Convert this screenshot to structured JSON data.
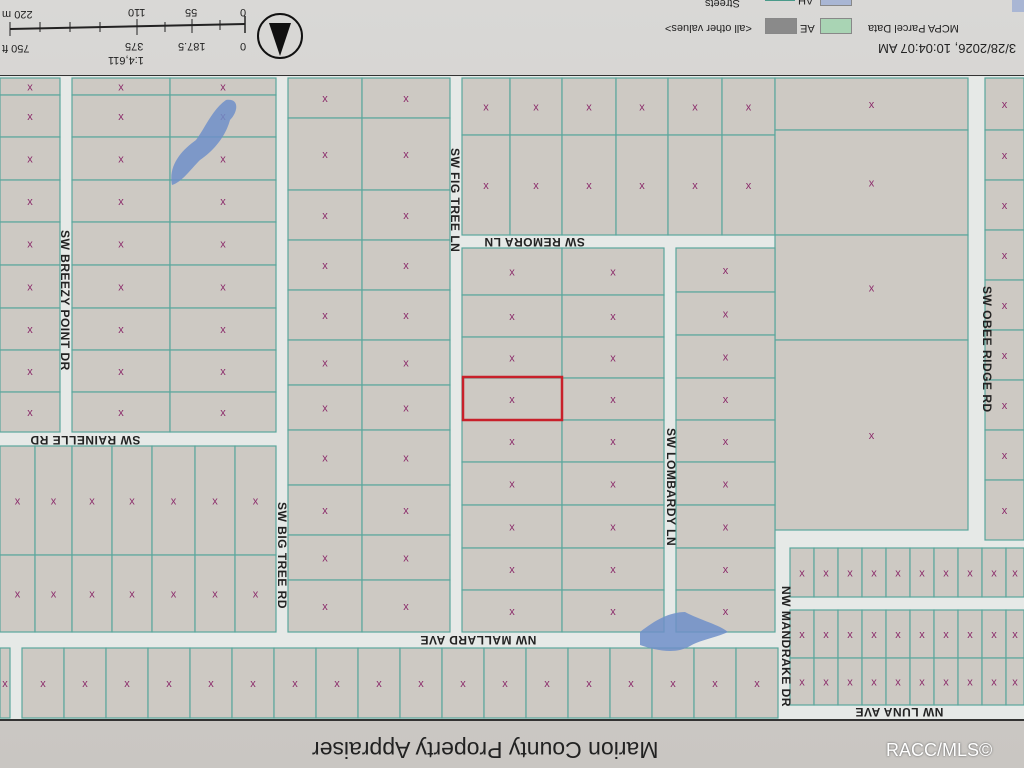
{
  "header": {
    "timestamp": "3/28/2026, 10:04:07 AM",
    "scale_ratio": "1:4,611",
    "scale_m": [
      "0",
      "55",
      "110",
      "220 m"
    ],
    "scale_ft": [
      "0",
      "187.5",
      "375",
      "750 ft"
    ],
    "north_arrow": "north-arrow-icon",
    "legend": {
      "title": "MCPA Parcel Data",
      "items": [
        {
          "label": "AE",
          "color": "#a9d4b4"
        },
        {
          "label": "<all other values>",
          "color": "#8a8a8a"
        },
        {
          "label": "AH",
          "color": "#a9b6d4"
        },
        {
          "label": "Streets",
          "color": "#4a9a8a"
        }
      ]
    }
  },
  "map": {
    "parcel_fill": "#cdc9c3",
    "parcel_line": "#5aa79c",
    "road_fill": "#e6e9e7",
    "water_color": "#6f8fc9",
    "marker_color": "#8b2a6a",
    "selected_color": "#c8202a",
    "streets": {
      "breezy_point": "SW BREEZY POINT DR",
      "big_tree": "SW BIG TREE RD",
      "fig_tree": "SW FIG TREE LN",
      "lombardy": "SW LOMBARDY LN",
      "obee_ridge": "SW OBEE RIDGE RD",
      "mandrake": "NW MANDRAKE DR",
      "remora": "SW REMORA LN",
      "rainelle": "SW RAINELLE RD",
      "mallard": "NW MALLARD AVE",
      "luna": "NW LUNA AVE"
    },
    "marker_glyph": "x"
  },
  "footer": {
    "title": "Marion County Property Appraiser",
    "watermark": "RACC/MLS©"
  }
}
